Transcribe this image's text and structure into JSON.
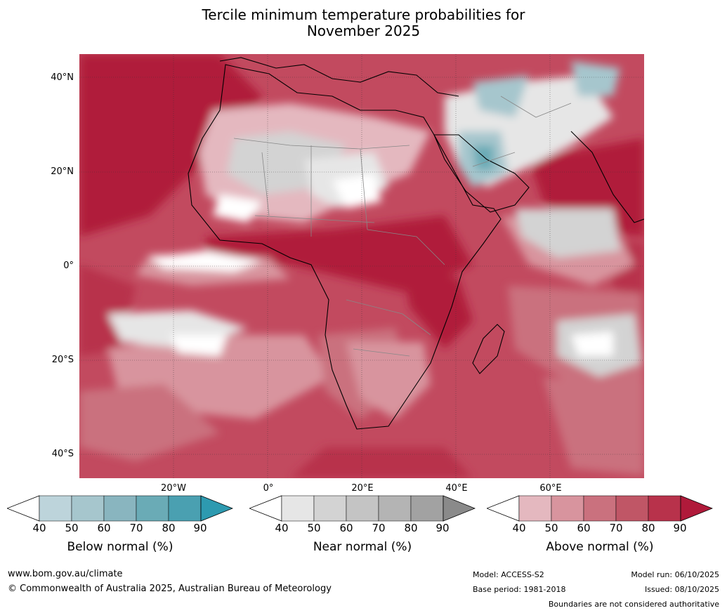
{
  "title_line1": "Tercile minimum temperature probabilities for",
  "title_line2": "November 2025",
  "map": {
    "lat_labels": [
      "40°N",
      "20°N",
      "0°",
      "20°S",
      "40°S"
    ],
    "lon_labels": [
      "20°W",
      "0°",
      "20°E",
      "40°E",
      "60°E"
    ]
  },
  "colorbars": [
    {
      "name": "Below normal (%)",
      "ticks": [
        "40",
        "50",
        "60",
        "70",
        "80",
        "90"
      ],
      "colors": [
        "#bdd4db",
        "#a6c6cd",
        "#89b5bf",
        "#6aabb6",
        "#4aa0b1"
      ],
      "over_color": "#2d9ab0"
    },
    {
      "name": "Near normal (%)",
      "ticks": [
        "40",
        "50",
        "60",
        "70",
        "80",
        "90"
      ],
      "colors": [
        "#e6e6e6",
        "#d3d3d3",
        "#c4c4c4",
        "#b4b4b4",
        "#a2a2a2"
      ],
      "over_color": "#8a8a8a"
    },
    {
      "name": "Above normal (%)",
      "ticks": [
        "40",
        "50",
        "60",
        "70",
        "80",
        "90"
      ],
      "colors": [
        "#e4b8bf",
        "#d8949e",
        "#ca717e",
        "#c05666",
        "#b8324b"
      ],
      "over_color": "#b01a3a"
    }
  ],
  "footer": {
    "website": "www.bom.gov.au/climate",
    "copyright": "© Commonwealth of Australia 2025, Australian Bureau of Meteorology",
    "model": "Model: ACCESS-S2",
    "base_period": "Base period: 1981-2018",
    "model_run": "Model run: 06/10/2025",
    "issued": "Issued: 08/10/2025",
    "disclaimer": "Boundaries are not considered authoritative"
  }
}
